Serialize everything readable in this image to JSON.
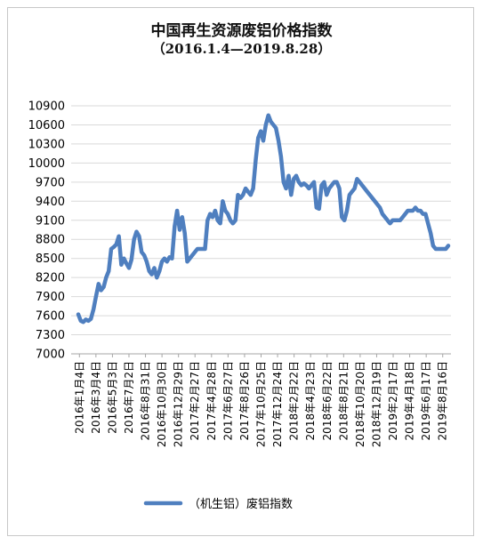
{
  "chart_data": {
    "type": "line",
    "title": "中国再生资源废铝价格指数",
    "subtitle": "（2016.1.4—2019.8.28）",
    "ylim": [
      7000,
      10900
    ],
    "yticks": [
      7000,
      7300,
      7600,
      7900,
      8200,
      8500,
      8800,
      9100,
      9400,
      9700,
      10000,
      10300,
      10600,
      10900
    ],
    "grid": true,
    "legend_position": "bottom",
    "color": "#4f7fbf",
    "xtick_labels": [
      "2016年1月4日",
      "2016年3月4日",
      "2016年5月3日",
      "2016年7月2日",
      "2016年8月31日",
      "2016年10月30日",
      "2016年12月29日",
      "2017年2月27日",
      "2017年4月28日",
      "2017年6月27日",
      "2017年8月26日",
      "2017年10月25日",
      "2017年12月24日",
      "2018年2月22日",
      "2018年4月23日",
      "2018年6月22日",
      "2018年8月21日",
      "2018年10月20日",
      "2018年12月19日",
      "2019年2月17日",
      "2019年4月18日",
      "2019年6月17日",
      "2019年8月16日"
    ],
    "series": [
      {
        "name": "（机生铝）废铝指数",
        "values": [
          7620,
          7520,
          7500,
          7540,
          7520,
          7550,
          7700,
          7900,
          8100,
          8000,
          8050,
          8200,
          8300,
          8650,
          8680,
          8720,
          8850,
          8400,
          8500,
          8420,
          8350,
          8480,
          8800,
          8920,
          8850,
          8600,
          8550,
          8450,
          8300,
          8250,
          8350,
          8200,
          8300,
          8450,
          8500,
          8450,
          8520,
          8500,
          9000,
          9250,
          8950,
          9150,
          8900,
          8450,
          8500,
          8550,
          8600,
          8650,
          8650,
          8650,
          8650,
          9100,
          9200,
          9150,
          9250,
          9100,
          9050,
          9400,
          9250,
          9200,
          9100,
          9050,
          9100,
          9500,
          9450,
          9500,
          9600,
          9550,
          9500,
          9600,
          10050,
          10400,
          10500,
          10350,
          10600,
          10750,
          10650,
          10600,
          10550,
          10350,
          10100,
          9700,
          9600,
          9800,
          9500,
          9750,
          9800,
          9700,
          9650,
          9680,
          9650,
          9600,
          9650,
          9700,
          9300,
          9280,
          9650,
          9700,
          9500,
          9600,
          9650,
          9700,
          9700,
          9600,
          9150,
          9100,
          9250,
          9500,
          9550,
          9600,
          9750,
          9700,
          9650,
          9600,
          9550,
          9500,
          9450,
          9400,
          9350,
          9300,
          9200,
          9150,
          9100,
          9050,
          9100,
          9100,
          9100,
          9100,
          9150,
          9200,
          9250,
          9250,
          9250,
          9300,
          9250,
          9250,
          9200,
          9200,
          9050,
          8900,
          8700,
          8650,
          8650,
          8650,
          8650,
          8650,
          8700
        ]
      }
    ]
  }
}
